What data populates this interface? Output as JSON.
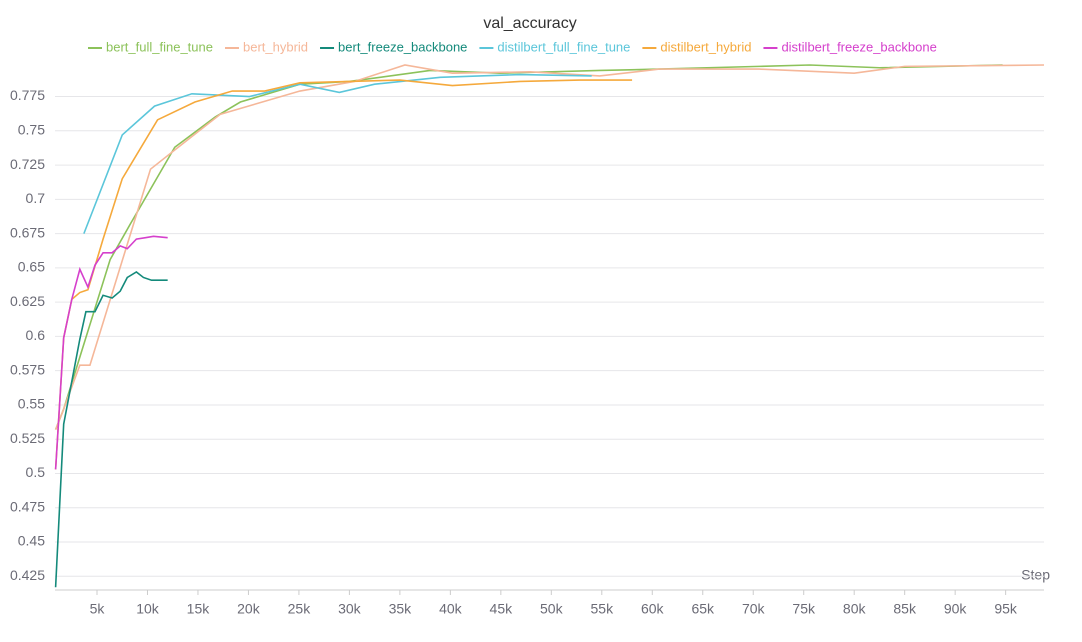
{
  "chart_data": {
    "type": "line",
    "title": "val_accuracy",
    "x_label": "Step",
    "xlim": [
      840,
      98800
    ],
    "ylim": [
      0.415,
      0.798
    ],
    "xticks": [
      {
        "value": 5000,
        "label": "5k"
      },
      {
        "value": 10000,
        "label": "10k"
      },
      {
        "value": 15000,
        "label": "15k"
      },
      {
        "value": 20000,
        "label": "20k"
      },
      {
        "value": 25000,
        "label": "25k"
      },
      {
        "value": 30000,
        "label": "30k"
      },
      {
        "value": 35000,
        "label": "35k"
      },
      {
        "value": 40000,
        "label": "40k"
      },
      {
        "value": 45000,
        "label": "45k"
      },
      {
        "value": 50000,
        "label": "50k"
      },
      {
        "value": 55000,
        "label": "55k"
      },
      {
        "value": 60000,
        "label": "60k"
      },
      {
        "value": 65000,
        "label": "65k"
      },
      {
        "value": 70000,
        "label": "70k"
      },
      {
        "value": 75000,
        "label": "75k"
      },
      {
        "value": 80000,
        "label": "80k"
      },
      {
        "value": 85000,
        "label": "85k"
      },
      {
        "value": 90000,
        "label": "90k"
      },
      {
        "value": 95000,
        "label": "95k"
      }
    ],
    "yticks": [
      0.425,
      0.45,
      0.475,
      0.5,
      0.525,
      0.55,
      0.575,
      0.6,
      0.625,
      0.65,
      0.675,
      0.7,
      0.725,
      0.75,
      0.775
    ],
    "grid": true,
    "series": [
      {
        "name": "bert_full_fine_tune",
        "color": "#8cc25a",
        "x": [
          900,
          1700,
          6300,
          8300,
          12700,
          16700,
          19200,
          25100,
          30000,
          38000,
          44900,
          54800,
          60700,
          70600,
          75600,
          82500,
          94700
        ],
        "values": [
          0.532,
          0.547,
          0.656,
          0.682,
          0.738,
          0.76,
          0.771,
          0.784,
          0.786,
          0.794,
          0.792,
          0.794,
          0.795,
          0.797,
          0.798,
          0.796,
          0.798
        ]
      },
      {
        "name": "bert_hybrid",
        "color": "#f5b799",
        "x": [
          900,
          1700,
          3300,
          4300,
          10300,
          12700,
          17200,
          25100,
          30500,
          35500,
          40200,
          47900,
          54800,
          60700,
          70600,
          80000,
          85000,
          98800
        ],
        "values": [
          0.532,
          0.547,
          0.579,
          0.579,
          0.722,
          0.736,
          0.762,
          0.779,
          0.786,
          0.798,
          0.792,
          0.793,
          0.79,
          0.795,
          0.795,
          0.792,
          0.797,
          0.798
        ]
      },
      {
        "name": "bert_freeze_backbone",
        "color": "#148a7b",
        "x": [
          900,
          1700,
          3300,
          3900,
          4800,
          5600,
          6500,
          7300,
          8000,
          8900,
          9600,
          10400,
          12000
        ],
        "values": [
          0.417,
          0.536,
          0.598,
          0.618,
          0.618,
          0.63,
          0.628,
          0.633,
          0.643,
          0.647,
          0.643,
          0.641,
          0.641
        ]
      },
      {
        "name": "distilbert_full_fine_tune",
        "color": "#5bc6da",
        "x": [
          3700,
          7500,
          10700,
          14400,
          20100,
          25100,
          29000,
          32500,
          39000,
          46900,
          54000
        ],
        "values": [
          0.675,
          0.747,
          0.768,
          0.777,
          0.775,
          0.784,
          0.778,
          0.784,
          0.789,
          0.791,
          0.79
        ]
      },
      {
        "name": "distilbert_hybrid",
        "color": "#f5a93c",
        "x": [
          900,
          1700,
          2500,
          3300,
          4100,
          5600,
          7500,
          11000,
          14700,
          18400,
          21600,
          25100,
          30000,
          35000,
          40200,
          46900,
          52800,
          58000
        ],
        "values": [
          0.503,
          0.599,
          0.627,
          0.632,
          0.634,
          0.671,
          0.715,
          0.758,
          0.771,
          0.779,
          0.779,
          0.785,
          0.786,
          0.787,
          0.783,
          0.786,
          0.787,
          0.787
        ]
      },
      {
        "name": "distilbert_freeze_backbone",
        "color": "#d540cc",
        "x": [
          900,
          1700,
          2500,
          3300,
          4100,
          4800,
          5600,
          6500,
          7300,
          8000,
          8900,
          9800,
          10600,
          12000
        ],
        "values": [
          0.503,
          0.599,
          0.627,
          0.649,
          0.636,
          0.652,
          0.661,
          0.661,
          0.666,
          0.664,
          0.671,
          0.672,
          0.673,
          0.672
        ]
      }
    ]
  }
}
